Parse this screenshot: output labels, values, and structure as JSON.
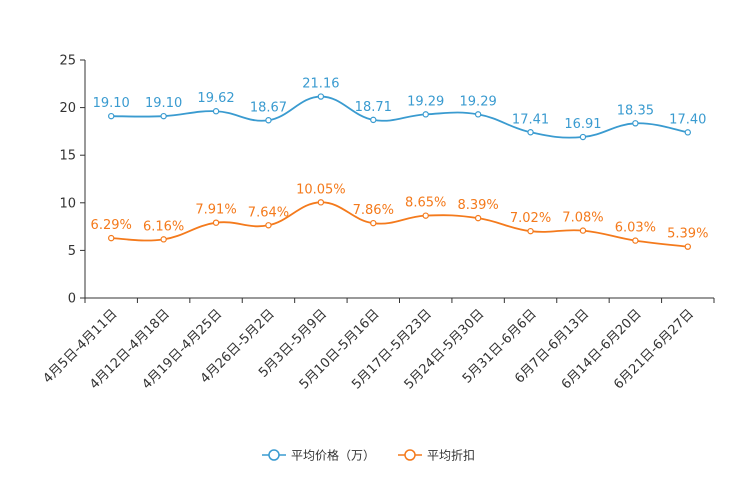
{
  "chart_data": {
    "type": "line",
    "categories": [
      "4月5日-4月11日",
      "4月12日-4月18日",
      "4月19日-4月25日",
      "4月26日-5月2日",
      "5月3日-5月9日",
      "5月10日-5月16日",
      "5月17日-5月23日",
      "5月24日-5月30日",
      "5月31日-6月6日",
      "6月7日-6月13日",
      "6月14日-6月20日",
      "6月21日-6月27日"
    ],
    "series": [
      {
        "name": "平均价格（万）",
        "color": "#3a9bd0",
        "values": [
          19.1,
          19.1,
          19.62,
          18.67,
          21.16,
          18.71,
          19.29,
          19.29,
          17.41,
          16.91,
          18.35,
          17.4
        ],
        "labels": [
          "19.10",
          "19.10",
          "19.62",
          "18.67",
          "21.16",
          "18.71",
          "19.29",
          "19.29",
          "17.41",
          "16.91",
          "18.35",
          "17.40"
        ]
      },
      {
        "name": "平均折扣",
        "color": "#f47a1c",
        "values": [
          6.29,
          6.16,
          7.91,
          7.64,
          10.05,
          7.86,
          8.65,
          8.39,
          7.02,
          7.08,
          6.03,
          5.39
        ],
        "labels": [
          "6.29%",
          "6.16%",
          "7.91%",
          "7.64%",
          "10.05%",
          "7.86%",
          "8.65%",
          "8.39%",
          "7.02%",
          "7.08%",
          "6.03%",
          "5.39%"
        ]
      }
    ],
    "ylim": [
      0,
      25
    ],
    "yticks": [
      "0",
      "5",
      "10",
      "15",
      "20",
      "25"
    ],
    "legend_position": "bottom-center",
    "grid": false
  }
}
